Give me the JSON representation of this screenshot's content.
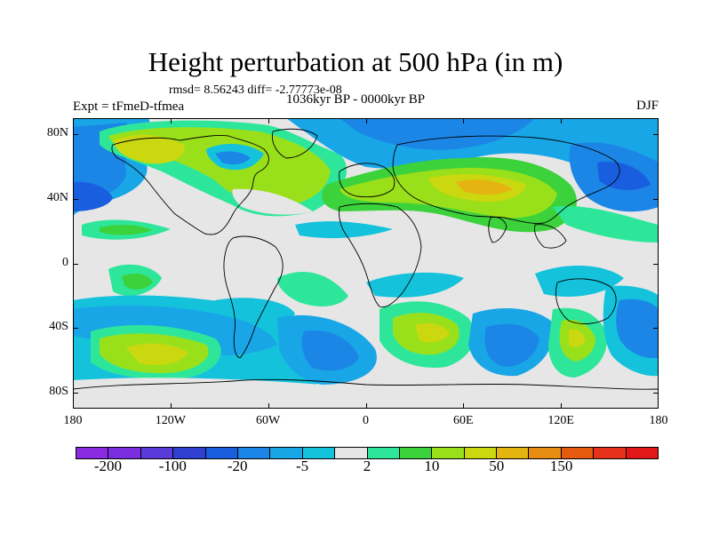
{
  "title": "Height perturbation at 500 hPa (in m)",
  "stats": "rmsd= 8.56243 diff= -2.77773e-08",
  "period": "1036kyr BP - 0000kyr BP",
  "experiment": "Expt = tFmeD-tfmea",
  "season": "DJF",
  "map_data": {
    "projection": "cylindrical equidistant",
    "lon_range": [
      -180,
      180
    ],
    "lat_range": [
      -90,
      90
    ],
    "y_ticks": [
      {
        "lat": 80,
        "label": "80N"
      },
      {
        "lat": 40,
        "label": "40N"
      },
      {
        "lat": 0,
        "label": "0"
      },
      {
        "lat": -40,
        "label": "40S"
      },
      {
        "lat": -80,
        "label": "80S"
      }
    ],
    "x_ticks": [
      {
        "lon": -180,
        "label": "180"
      },
      {
        "lon": -120,
        "label": "120W"
      },
      {
        "lon": -60,
        "label": "60W"
      },
      {
        "lon": 0,
        "label": "0"
      },
      {
        "lon": 60,
        "label": "60E"
      },
      {
        "lon": 120,
        "label": "120E"
      },
      {
        "lon": 180,
        "label": "180"
      }
    ]
  },
  "colorbar": {
    "colors": [
      "#8a2be2",
      "#7a2ee0",
      "#5a3ad8",
      "#2f3fd0",
      "#1a5ee0",
      "#1b86e6",
      "#19a6e6",
      "#14c2dc",
      "#e6e6e6",
      "#2ee69a",
      "#3cd23c",
      "#9ae01a",
      "#cbd80f",
      "#e6b410",
      "#e68c10",
      "#e65a10",
      "#e6321a",
      "#e01818"
    ],
    "labels": [
      {
        "edge": 1,
        "text": "-200"
      },
      {
        "edge": 3,
        "text": "-100"
      },
      {
        "edge": 5,
        "text": "-20"
      },
      {
        "edge": 7,
        "text": "-5"
      },
      {
        "edge": 9,
        "text": "2"
      },
      {
        "edge": 11,
        "text": "10"
      },
      {
        "edge": 13,
        "text": "50"
      },
      {
        "edge": 15,
        "text": "150"
      }
    ]
  },
  "field_colors": {
    "neutral": "#e6e6e6",
    "ocean_blue_light": "#14c2dc",
    "ocean_blue_mid": "#19a6e6",
    "ocean_blue_dark": "#1b86e6",
    "deep_blue": "#1a5ee0",
    "green_light": "#2ee69a",
    "green": "#3cd23c",
    "yellow_green": "#9ae01a",
    "yellow": "#cbd80f",
    "orange": "#e6b410"
  }
}
